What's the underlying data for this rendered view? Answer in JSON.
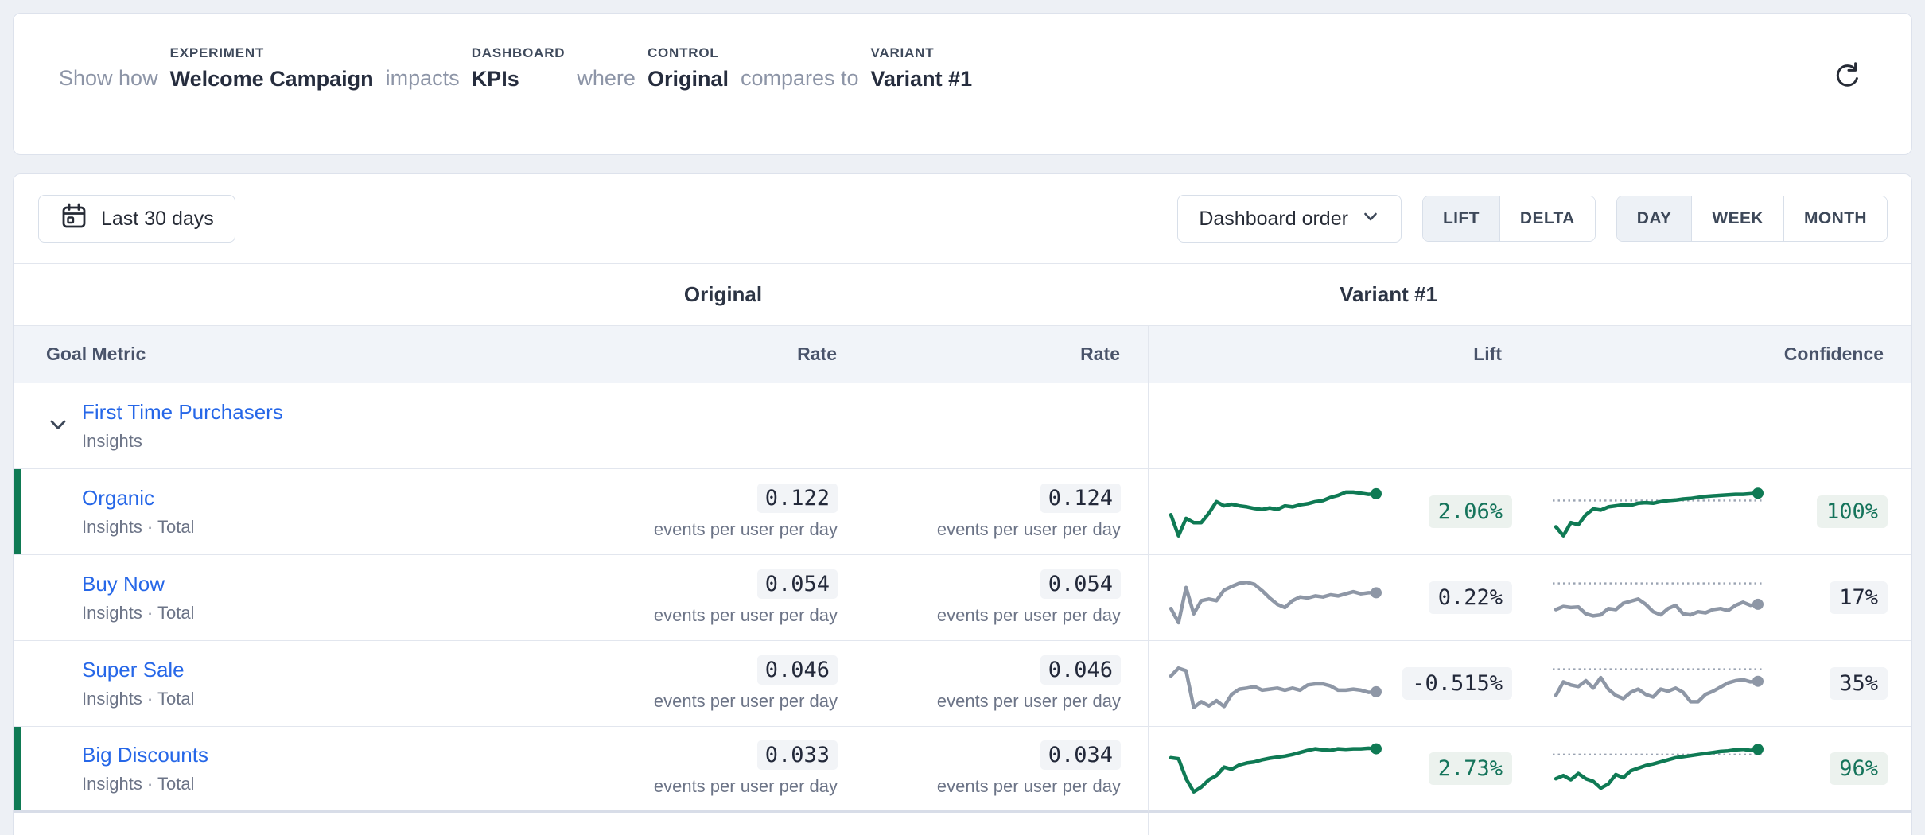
{
  "colors": {
    "significant_green": "#0f7a54",
    "neutral_gray_line": "#8e97a6",
    "link_blue": "#2667e8",
    "header_bg": "#f1f4f9",
    "threshold_dot": "#9aa3b2"
  },
  "header": {
    "segments": [
      {
        "type": "text",
        "text": "Show how"
      },
      {
        "type": "labeled",
        "label": "EXPERIMENT",
        "value": "Welcome Campaign"
      },
      {
        "type": "text",
        "text": "impacts"
      },
      {
        "type": "labeled",
        "label": "DASHBOARD",
        "value": "KPIs"
      },
      {
        "type": "text",
        "text": "where"
      },
      {
        "type": "labeled",
        "label": "CONTROL",
        "value": "Original"
      },
      {
        "type": "text",
        "text": "compares to"
      },
      {
        "type": "labeled",
        "label": "VARIANT",
        "value": "Variant #1"
      }
    ],
    "refresh_icon": "refresh-icon"
  },
  "toolbar": {
    "date_range_label": "Last 30 days",
    "date_range_icon": "calendar-icon",
    "sort_label": "Dashboard order",
    "sort_icon": "chevron-down-icon",
    "mode_toggle": {
      "options": [
        "LIFT",
        "DELTA"
      ],
      "selected": "LIFT"
    },
    "granularity_toggle": {
      "options": [
        "DAY",
        "WEEK",
        "MONTH"
      ],
      "selected": "DAY"
    }
  },
  "table": {
    "group_headers": {
      "control": "Original",
      "variant": "Variant #1"
    },
    "columns": [
      "Goal Metric",
      "Rate",
      "Rate",
      "Lift",
      "Confidence"
    ],
    "unit_label": "events per user per day",
    "rows": [
      {
        "kind": "parent",
        "name": "First Time Purchasers",
        "source": "Insights",
        "expanded": true
      },
      {
        "kind": "child",
        "name": "Organic",
        "source": "Insights · Total",
        "control_rate": "0.122",
        "variant_rate": "0.124",
        "lift": "2.06%",
        "confidence": "100%",
        "significant": true,
        "lift_spark": [
          0.55,
          0.95,
          0.62,
          0.7,
          0.7,
          0.52,
          0.3,
          0.38,
          0.35,
          0.38,
          0.4,
          0.43,
          0.45,
          0.42,
          0.45,
          0.38,
          0.4,
          0.36,
          0.34,
          0.3,
          0.28,
          0.22,
          0.18,
          0.12,
          0.12,
          0.14,
          0.16,
          0.15
        ],
        "conf_spark": [
          0.78,
          0.95,
          0.7,
          0.74,
          0.55,
          0.44,
          0.46,
          0.4,
          0.38,
          0.36,
          0.37,
          0.33,
          0.32,
          0.33,
          0.3,
          0.28,
          0.27,
          0.25,
          0.24,
          0.22,
          0.2,
          0.19,
          0.18,
          0.17,
          0.16,
          0.16,
          0.15,
          0.14
        ],
        "conf_threshold": 0.28
      },
      {
        "kind": "child",
        "name": "Buy Now",
        "source": "Insights · Total",
        "control_rate": "0.054",
        "variant_rate": "0.054",
        "lift": "0.22%",
        "confidence": "17%",
        "significant": false,
        "lift_spark": [
          0.7,
          0.97,
          0.3,
          0.8,
          0.55,
          0.52,
          0.55,
          0.35,
          0.28,
          0.22,
          0.2,
          0.24,
          0.36,
          0.5,
          0.62,
          0.68,
          0.55,
          0.48,
          0.5,
          0.46,
          0.48,
          0.44,
          0.46,
          0.42,
          0.38,
          0.42,
          0.4,
          0.4
        ],
        "conf_spark": [
          0.72,
          0.66,
          0.68,
          0.67,
          0.8,
          0.84,
          0.82,
          0.7,
          0.72,
          0.6,
          0.56,
          0.52,
          0.62,
          0.76,
          0.82,
          0.7,
          0.64,
          0.8,
          0.82,
          0.76,
          0.78,
          0.72,
          0.7,
          0.74,
          0.64,
          0.58,
          0.64,
          0.62
        ],
        "conf_threshold": 0.22
      },
      {
        "kind": "child",
        "name": "Super Sale",
        "source": "Insights · Total",
        "control_rate": "0.046",
        "variant_rate": "0.046",
        "lift": "-0.515%",
        "confidence": "35%",
        "significant": false,
        "lift_spark": [
          0.35,
          0.2,
          0.25,
          0.95,
          0.84,
          0.92,
          0.82,
          0.93,
          0.7,
          0.6,
          0.58,
          0.55,
          0.62,
          0.6,
          0.58,
          0.62,
          0.58,
          0.62,
          0.52,
          0.5,
          0.5,
          0.54,
          0.62,
          0.62,
          0.6,
          0.62,
          0.66,
          0.65
        ],
        "conf_spark": [
          0.72,
          0.46,
          0.52,
          0.55,
          0.44,
          0.58,
          0.38,
          0.6,
          0.72,
          0.78,
          0.66,
          0.6,
          0.7,
          0.75,
          0.6,
          0.64,
          0.58,
          0.66,
          0.84,
          0.84,
          0.7,
          0.64,
          0.56,
          0.48,
          0.44,
          0.42,
          0.46,
          0.45
        ],
        "conf_threshold": 0.22
      },
      {
        "kind": "child",
        "name": "Big Discounts",
        "source": "Insights · Total",
        "control_rate": "0.033",
        "variant_rate": "0.034",
        "lift": "2.73%",
        "confidence": "96%",
        "significant": true,
        "lift_spark": [
          0.3,
          0.32,
          0.7,
          0.95,
          0.86,
          0.72,
          0.64,
          0.48,
          0.52,
          0.44,
          0.4,
          0.38,
          0.34,
          0.31,
          0.29,
          0.27,
          0.24,
          0.2,
          0.16,
          0.13,
          0.15,
          0.16,
          0.13,
          0.14,
          0.13,
          0.13,
          0.12,
          0.13
        ],
        "conf_spark": [
          0.7,
          0.64,
          0.72,
          0.6,
          0.7,
          0.75,
          0.88,
          0.8,
          0.62,
          0.68,
          0.55,
          0.5,
          0.45,
          0.42,
          0.38,
          0.34,
          0.3,
          0.28,
          0.26,
          0.24,
          0.22,
          0.2,
          0.18,
          0.17,
          0.15,
          0.14,
          0.16,
          0.14
        ],
        "conf_threshold": 0.24
      }
    ]
  }
}
